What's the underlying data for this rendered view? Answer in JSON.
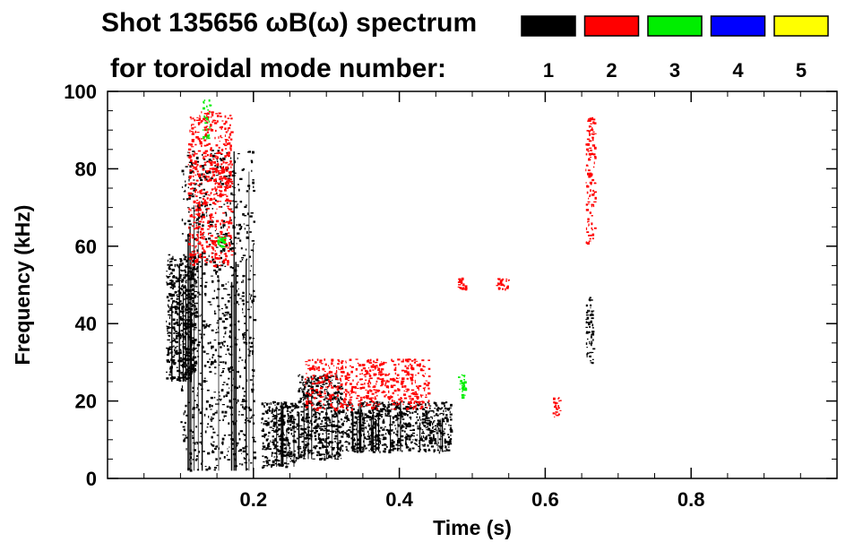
{
  "chart_data": {
    "type": "spectrogram",
    "title_line1": "Shot 135656 ωB(ω) spectrum",
    "title_line2": "for toroidal mode number:",
    "xlabel": "Time (s)",
    "ylabel": "Frequency (kHz)",
    "xlim": [
      0.0,
      1.0
    ],
    "ylim": [
      0,
      100
    ],
    "x_ticks": [
      "0.2",
      "0.4",
      "0.6",
      "0.8"
    ],
    "x_tick_values": [
      0.2,
      0.4,
      0.6,
      0.8
    ],
    "y_ticks": [
      "0",
      "20",
      "40",
      "60",
      "80",
      "100"
    ],
    "y_tick_values": [
      0,
      20,
      40,
      60,
      80,
      100
    ],
    "legend": [
      {
        "label": "1",
        "color": "#000000"
      },
      {
        "label": "2",
        "color": "#ff0000"
      },
      {
        "label": "3",
        "color": "#00ee00"
      },
      {
        "label": "4",
        "color": "#0000ff"
      },
      {
        "label": "5",
        "color": "#ffff00"
      }
    ],
    "series": [
      {
        "mode": "1",
        "color": "#000000",
        "features": [
          {
            "t_start": 0.08,
            "t_end": 0.12,
            "f_low": 25,
            "f_high": 58
          },
          {
            "t_start": 0.1,
            "t_end": 0.2,
            "f_low": 2,
            "f_high": 85
          },
          {
            "t_start": 0.21,
            "t_end": 0.26,
            "f_low": 3,
            "f_high": 20
          },
          {
            "t_start": 0.26,
            "t_end": 0.32,
            "f_low": 5,
            "f_high": 27
          },
          {
            "t_start": 0.32,
            "t_end": 0.47,
            "f_low": 7,
            "f_high": 20
          },
          {
            "t_start": 0.655,
            "t_end": 0.665,
            "f_low": 30,
            "f_high": 47
          }
        ]
      },
      {
        "mode": "2",
        "color": "#ff0000",
        "features": [
          {
            "t_start": 0.11,
            "t_end": 0.17,
            "f_low": 55,
            "f_high": 95
          },
          {
            "t_start": 0.27,
            "t_end": 0.44,
            "f_low": 18,
            "f_high": 31
          },
          {
            "t_start": 0.48,
            "t_end": 0.49,
            "f_low": 49,
            "f_high": 52
          },
          {
            "t_start": 0.53,
            "t_end": 0.55,
            "f_low": 49,
            "f_high": 52
          },
          {
            "t_start": 0.61,
            "t_end": 0.62,
            "f_low": 16,
            "f_high": 21
          },
          {
            "t_start": 0.655,
            "t_end": 0.668,
            "f_low": 60,
            "f_high": 94
          }
        ]
      },
      {
        "mode": "3",
        "color": "#00ee00",
        "features": [
          {
            "t_start": 0.13,
            "t_end": 0.14,
            "f_low": 88,
            "f_high": 98
          },
          {
            "t_start": 0.15,
            "t_end": 0.16,
            "f_low": 60,
            "f_high": 63
          },
          {
            "t_start": 0.48,
            "t_end": 0.49,
            "f_low": 20,
            "f_high": 27
          }
        ]
      }
    ]
  }
}
